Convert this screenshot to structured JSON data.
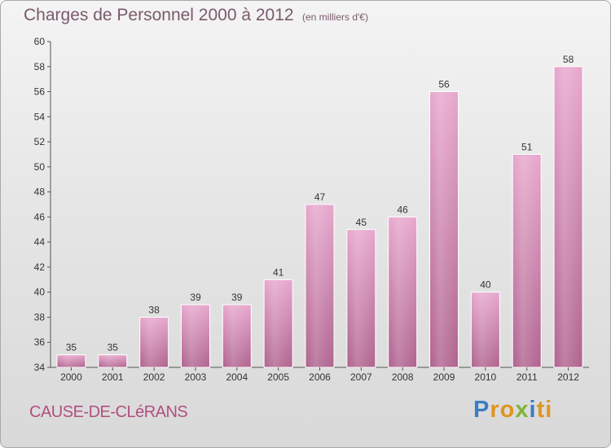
{
  "header": {
    "title": "Charges de Personnel 2000 à 2012",
    "unit_note": "(en milliers d'€)"
  },
  "footer": {
    "commune": "CAUSE-DE-CLéRANS",
    "logo_letters": [
      "P",
      "r",
      "o",
      "x",
      "i",
      "ti"
    ]
  },
  "colors": {
    "bar_top": "#e7a7cd",
    "bar_bottom": "#b0648f",
    "title": "#7a5a6b",
    "commune": "#b0507f"
  },
  "chart_data": {
    "type": "bar",
    "title": "Charges de Personnel 2000 à 2012",
    "subtitle": "(en milliers d'€)",
    "categories": [
      "2000",
      "2001",
      "2002",
      "2003",
      "2004",
      "2005",
      "2006",
      "2007",
      "2008",
      "2009",
      "2010",
      "2011",
      "2012"
    ],
    "values": [
      35,
      35,
      38,
      39,
      39,
      41,
      47,
      45,
      46,
      56,
      40,
      51,
      58
    ],
    "ylim": [
      34,
      60
    ],
    "yticks": [
      34,
      36,
      38,
      40,
      42,
      44,
      46,
      48,
      50,
      52,
      54,
      56,
      58,
      60
    ],
    "grid": false
  }
}
